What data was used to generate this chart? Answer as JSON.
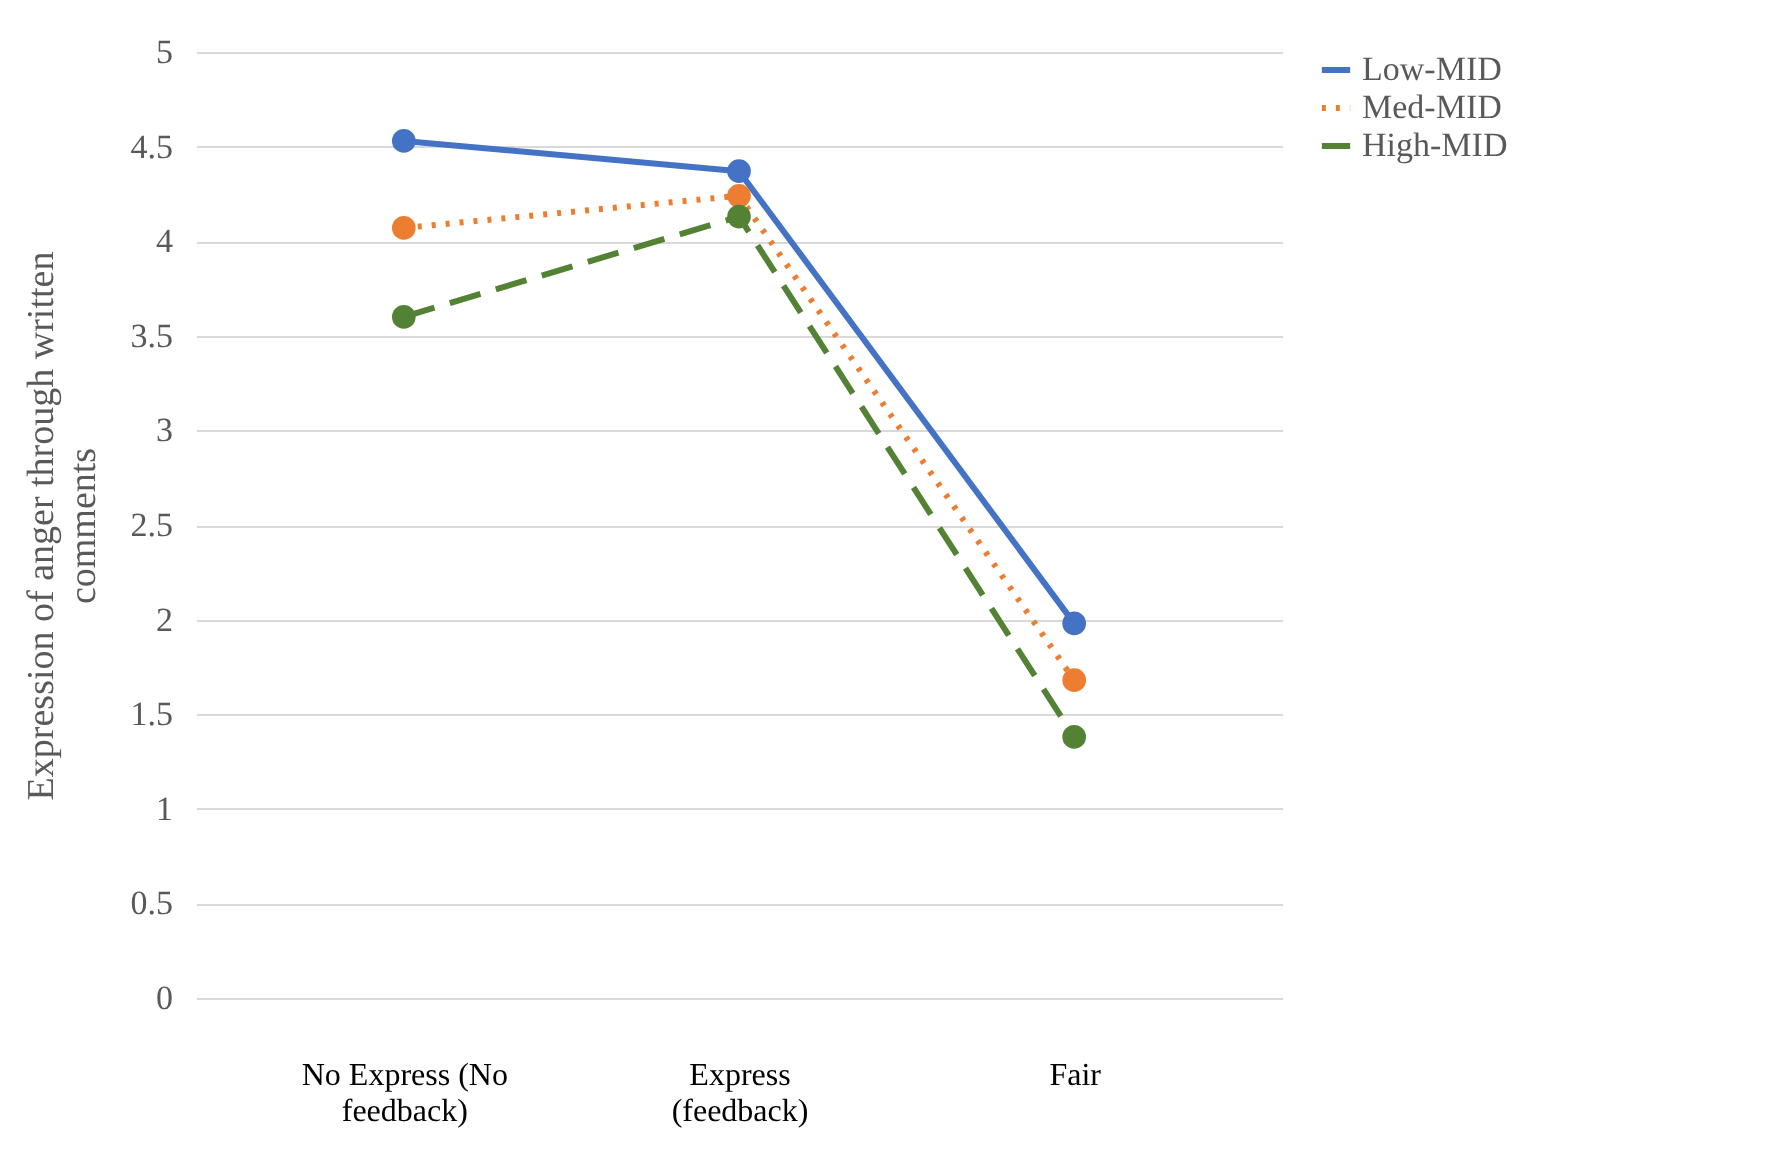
{
  "chart_data": {
    "type": "line",
    "ylabel": "Expression  of anger through written comments",
    "categories": [
      "No Express (No feedback)",
      "Express (feedback)",
      "Fair"
    ],
    "series": [
      {
        "name": "Low-MID",
        "color": "#4472c4",
        "line_style": "solid",
        "values": [
          4.53,
          4.37,
          1.98
        ]
      },
      {
        "name": "Med-MID",
        "color": "#ed7d31",
        "line_style": "dotted",
        "values": [
          4.07,
          4.24,
          1.68
        ]
      },
      {
        "name": "High-MID",
        "color": "#548235",
        "line_style": "dashed",
        "values": [
          3.6,
          4.13,
          1.38
        ]
      }
    ],
    "ylim": [
      0,
      5
    ],
    "yticks": [
      0,
      0.5,
      1,
      1.5,
      2,
      2.5,
      3,
      3.5,
      4,
      4.5,
      5
    ],
    "grid": "y",
    "legend": "right",
    "marker": "circle"
  }
}
